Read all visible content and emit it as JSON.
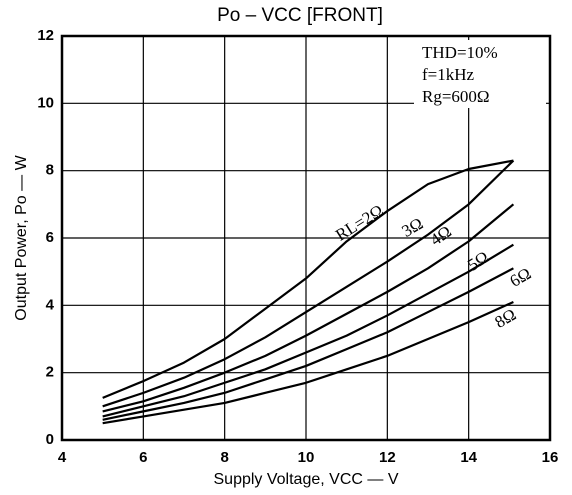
{
  "chart_data": {
    "type": "line",
    "title": "Po – VCC [FRONT]",
    "x_label": "Supply Voltage, VCC — V",
    "y_label": "Output Power, Po — W",
    "annotations": [
      "THD=10%",
      "f=1kHz",
      "Rg=600Ω"
    ],
    "x": [
      5,
      6,
      7,
      8,
      9,
      10,
      11,
      12,
      13,
      14,
      15.1
    ],
    "series": [
      {
        "name": "RL=2Ω",
        "color": "#000000",
        "values": [
          1.25,
          1.75,
          2.3,
          3.0,
          3.9,
          4.8,
          5.9,
          6.8,
          7.6,
          8.05,
          8.3
        ]
      },
      {
        "name": "3Ω",
        "color": "#000000",
        "values": [
          1.0,
          1.4,
          1.85,
          2.4,
          3.05,
          3.8,
          4.55,
          5.3,
          6.1,
          7.0,
          8.3
        ]
      },
      {
        "name": "4Ω",
        "color": "#000000",
        "values": [
          0.85,
          1.15,
          1.55,
          2.0,
          2.5,
          3.1,
          3.75,
          4.4,
          5.1,
          5.9,
          7.0
        ]
      },
      {
        "name": "5Ω",
        "color": "#000000",
        "values": [
          0.7,
          1.0,
          1.3,
          1.7,
          2.1,
          2.6,
          3.1,
          3.7,
          4.35,
          5.0,
          5.8
        ]
      },
      {
        "name": "6Ω",
        "color": "#000000",
        "values": [
          0.6,
          0.85,
          1.1,
          1.4,
          1.8,
          2.2,
          2.7,
          3.2,
          3.8,
          4.4,
          5.1
        ]
      },
      {
        "name": "8Ω",
        "color": "#000000",
        "values": [
          0.5,
          0.7,
          0.9,
          1.1,
          1.4,
          1.7,
          2.1,
          2.5,
          3.0,
          3.5,
          4.1
        ]
      }
    ],
    "xlim": [
      4,
      16
    ],
    "xticks": [
      4,
      6,
      8,
      10,
      12,
      14,
      16
    ],
    "ylim": [
      0,
      12
    ],
    "yticks": [
      0,
      2,
      4,
      6,
      8,
      10,
      12
    ],
    "grid": true
  }
}
